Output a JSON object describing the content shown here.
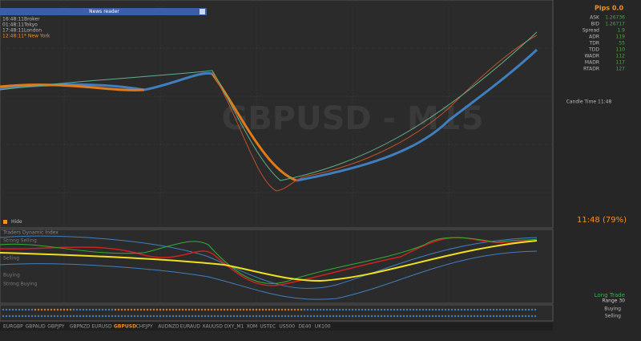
{
  "news_reader": {
    "title": "News reader",
    "sessions": [
      {
        "time": "16:48:11",
        "name": "Broker"
      },
      {
        "time": "01:48:11",
        "name": "Tokyo"
      },
      {
        "time": "17:48:11",
        "name": "London"
      },
      {
        "time": "12:48:11",
        "name": "* New York"
      }
    ]
  },
  "chart": {
    "watermark": "GBPUSD - M15",
    "pips": "Pips 0.0",
    "candle_time": "11:48 (79%)",
    "hide": "Hide"
  },
  "info_panel": {
    "rows": [
      [
        "ASK",
        "1.26736"
      ],
      [
        "BID",
        "1.26717"
      ],
      [
        "Spread",
        "1.9"
      ],
      [
        "ADR",
        "119"
      ],
      [
        "TDR",
        "55"
      ],
      [
        "TDD",
        "110"
      ],
      [
        "WADR",
        "112"
      ],
      [
        "MADR",
        "117"
      ],
      [
        "RTADR",
        "127"
      ]
    ],
    "candle": "Candle Time 11:48"
  },
  "indicator": {
    "title": "Traders Dynamic Index",
    "levels": [
      "Strong Selling",
      "Selling",
      "Buying",
      "Strong Buying"
    ]
  },
  "signal": {
    "trade": "Long Trade",
    "range": "Range 30",
    "rows": [
      "Buying",
      "Selling"
    ]
  },
  "tabs": [
    "EURGBP",
    "GBPAUD",
    "GBPJPY",
    "GBPNZD",
    "EURUSD",
    "GBPUSD",
    "CHFJPY",
    "AUDNZD",
    "EURAUD",
    "XAUUSD",
    "DXY_M1",
    "XOM",
    "USTEC",
    "US500",
    "DE40",
    "UK100"
  ]
}
